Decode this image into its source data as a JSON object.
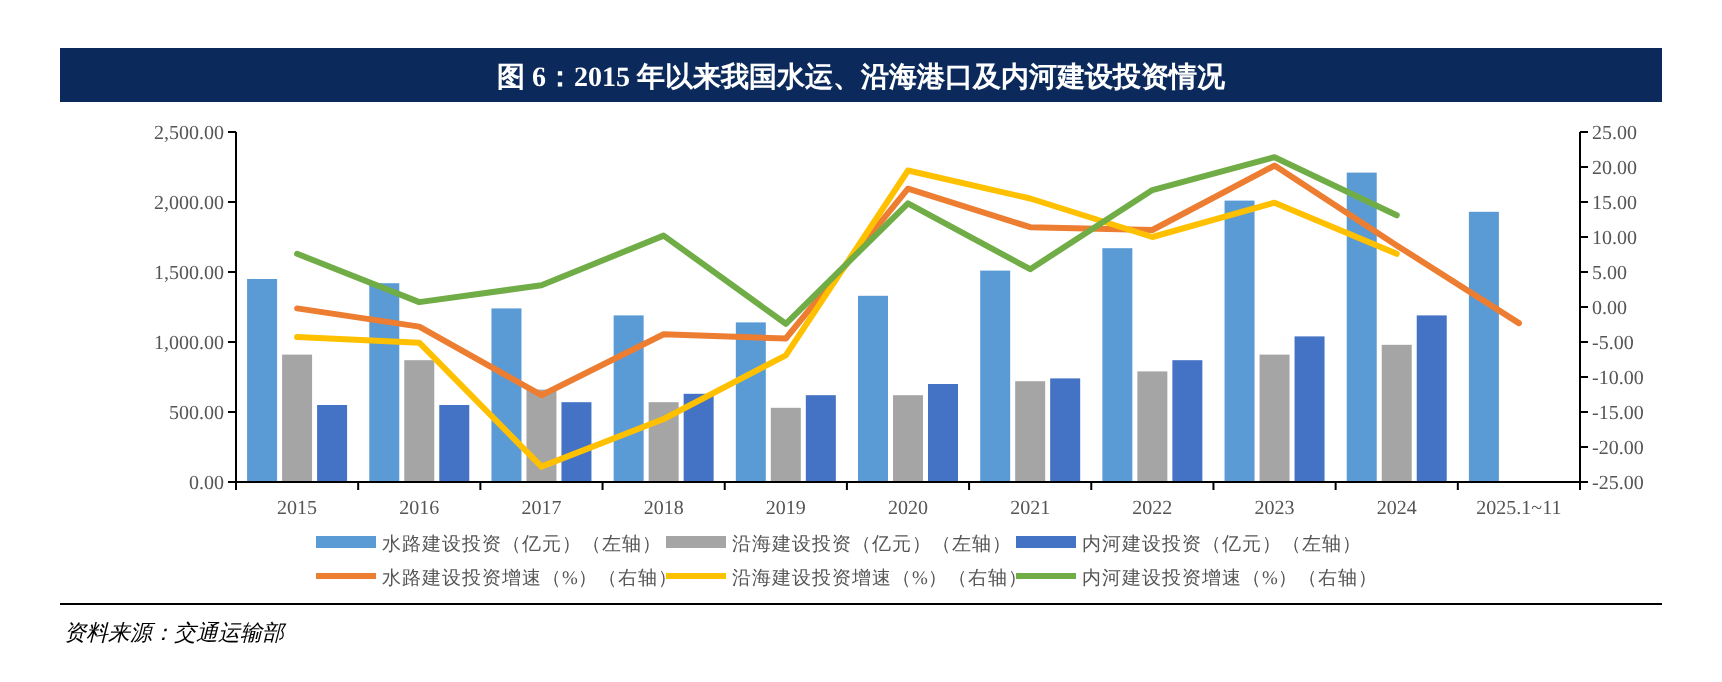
{
  "chart_data": {
    "type": "bar",
    "title": "图 6：2015 年以来我国水运、沿海港口及内河建设投资情况",
    "categories": [
      "2015",
      "2016",
      "2017",
      "2018",
      "2019",
      "2020",
      "2021",
      "2022",
      "2023",
      "2024",
      "2025.1~11"
    ],
    "series": [
      {
        "name": "水路建设投资（亿元）（左轴）",
        "color": "#5b9bd5",
        "values": [
          1450,
          1420,
          1240,
          1190,
          1140,
          1330,
          1510,
          1670,
          2010,
          2210,
          1930
        ]
      },
      {
        "name": "沿海建设投资（亿元）（左轴）",
        "color": "#a5a5a5",
        "values": [
          910,
          870,
          660,
          570,
          530,
          620,
          720,
          790,
          910,
          980,
          null
        ]
      },
      {
        "name": "内河建设投资（亿元）（左轴）",
        "color": "#4472c4",
        "values": [
          550,
          550,
          570,
          630,
          620,
          700,
          740,
          870,
          1040,
          1190,
          null
        ]
      },
      {
        "name": "水路建设投资增速（%）（右轴）",
        "type": "line",
        "axis": "y2",
        "color": "#ed7d31",
        "values": [
          -0.2,
          -2.8,
          -12.6,
          -3.9,
          -4.5,
          16.9,
          11.4,
          11.0,
          20.2,
          8.8,
          -2.3
        ]
      },
      {
        "name": "沿海建设投资增速（%）（右轴）",
        "type": "line",
        "axis": "y2",
        "color": "#ffc000",
        "values": [
          -4.3,
          -5.1,
          -22.8,
          -16.0,
          -6.9,
          19.5,
          15.5,
          10.0,
          14.9,
          7.6,
          null
        ]
      },
      {
        "name": "内河建设投资增速（%）（右轴）",
        "type": "line",
        "axis": "y2",
        "color": "#70ad47",
        "values": [
          7.6,
          0.7,
          3.1,
          10.2,
          -2.4,
          14.8,
          5.4,
          16.7,
          21.4,
          13.1,
          null
        ]
      }
    ],
    "ylim": [
      0,
      2500
    ],
    "yticks": [
      {
        "value": 0,
        "label": "0.00"
      },
      {
        "value": 500,
        "label": "500.00"
      },
      {
        "value": 1000,
        "label": "1,000.00"
      },
      {
        "value": 1500,
        "label": "1,500.00"
      },
      {
        "value": 2000,
        "label": "2,000.00"
      },
      {
        "value": 2500,
        "label": "2,500.00"
      }
    ],
    "y2lim": [
      -25,
      25
    ],
    "y2ticks": [
      {
        "value": -25,
        "label": "-25.00"
      },
      {
        "value": -20,
        "label": "-20.00"
      },
      {
        "value": -15,
        "label": "-15.00"
      },
      {
        "value": -10,
        "label": "-10.00"
      },
      {
        "value": -5,
        "label": "-5.00"
      },
      {
        "value": 0,
        "label": "0.00"
      },
      {
        "value": 5,
        "label": "5.00"
      },
      {
        "value": 10,
        "label": "10.00"
      },
      {
        "value": 15,
        "label": "15.00"
      },
      {
        "value": 20,
        "label": "20.00"
      },
      {
        "value": 25,
        "label": "25.00"
      }
    ],
    "legend": "bottom",
    "grid": false,
    "marker": "none",
    "line_style": "solid",
    "annotations": [
      "资料来源：交通运输部"
    ]
  }
}
